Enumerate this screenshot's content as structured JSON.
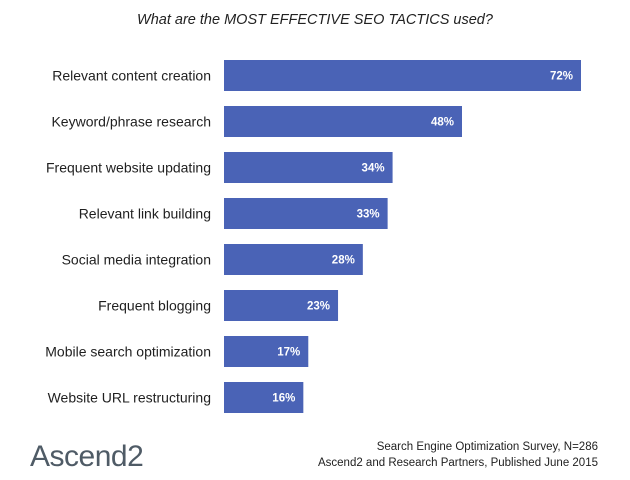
{
  "chart_data": {
    "type": "bar",
    "orientation": "horizontal",
    "title": "What are the MOST EFFECTIVE SEO TACTICS used?",
    "categories": [
      "Relevant content creation",
      "Keyword/phrase research",
      "Frequent website updating",
      "Relevant link building",
      "Social media integration",
      "Frequent blogging",
      "Mobile search optimization",
      "Website URL restructuring"
    ],
    "values": [
      72,
      48,
      34,
      33,
      28,
      23,
      17,
      16
    ],
    "value_labels": [
      "72%",
      "48%",
      "34%",
      "33%",
      "28%",
      "23%",
      "17%",
      "16%"
    ],
    "unit": "%",
    "xlim": [
      0,
      72
    ],
    "bar_color": "#4a63b6",
    "grid": false,
    "legend": "none"
  },
  "branding": {
    "logo_text": "Ascend2"
  },
  "footer": {
    "line1": "Search Engine Optimization Survey, N=286",
    "line2": "Ascend2 and Research Partners, Published June 2015"
  }
}
